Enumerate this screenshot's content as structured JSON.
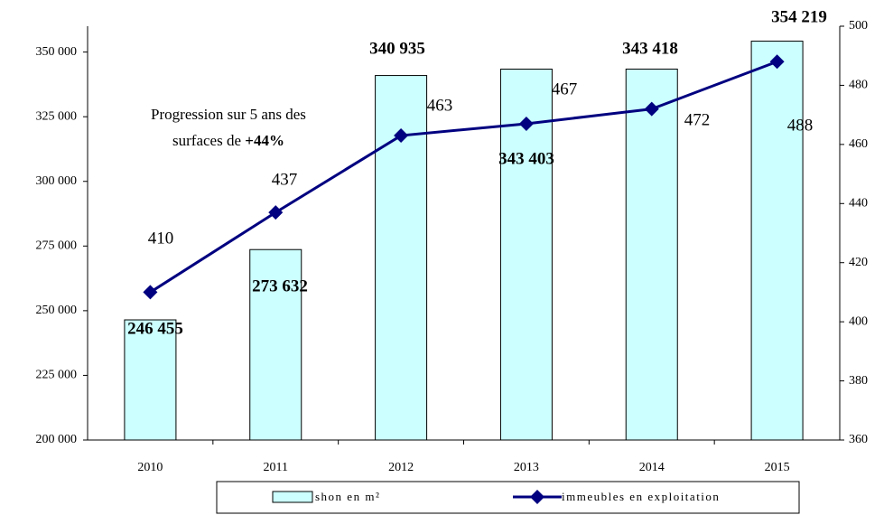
{
  "chart_data": {
    "type": "bar+line",
    "categories": [
      "2010",
      "2011",
      "2012",
      "2013",
      "2014",
      "2015"
    ],
    "series": [
      {
        "name": "shon en m²",
        "type": "bar",
        "color": "#ccffff",
        "values": [
          246455,
          273632,
          340935,
          343403,
          343418,
          354219
        ],
        "value_labels": [
          "246 455",
          "273 632",
          "340 935",
          "343 403",
          "343 418",
          "354 219"
        ]
      },
      {
        "name": "immeubles en exploitation",
        "type": "line",
        "axis": "y2",
        "color": "#000080",
        "values": [
          410,
          437,
          463,
          467,
          472,
          488
        ]
      }
    ],
    "ylim": [
      200000,
      360000
    ],
    "yticks": [
      {
        "value": 200000,
        "label": "200 000"
      },
      {
        "value": 225000,
        "label": "225 000"
      },
      {
        "value": 250000,
        "label": "250 000"
      },
      {
        "value": 275000,
        "label": "275 000"
      },
      {
        "value": 300000,
        "label": "300 000"
      },
      {
        "value": 325000,
        "label": "325 000"
      },
      {
        "value": 350000,
        "label": "350 000"
      }
    ],
    "y2lim": [
      360,
      500
    ],
    "y2ticks": [
      360,
      380,
      400,
      420,
      440,
      460,
      480,
      500
    ],
    "annotation": {
      "line1": "Progression sur 5 ans des",
      "line2": "surfaces de ",
      "highlight": "+44%"
    },
    "legend": "bottom"
  }
}
